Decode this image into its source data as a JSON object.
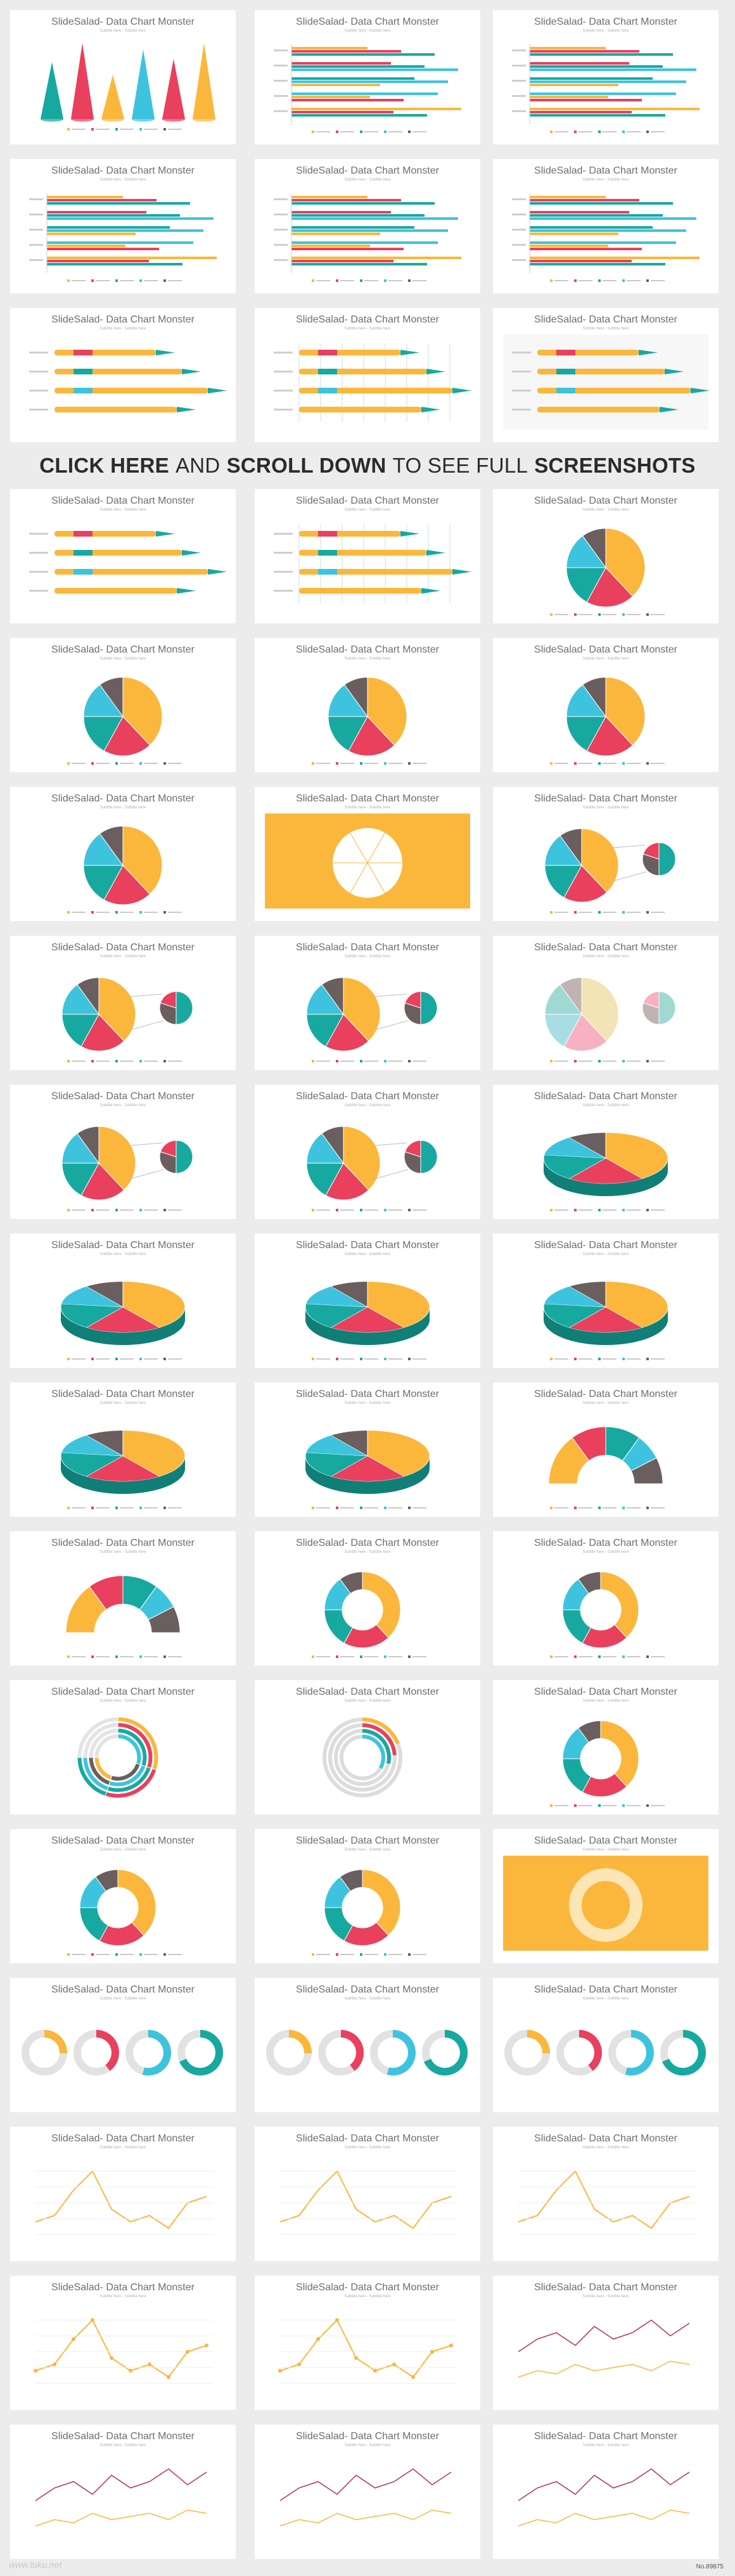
{
  "card_title": "SlideSalad- Data Chart Monster",
  "card_subtitle": "Subtitle here - Subtitle here",
  "banner": {
    "part1": "CLICK HERE",
    "part2": "AND",
    "part3": "SCROLL DOWN",
    "part4": "TO SEE FULL",
    "part5": "SCREENSHOTS"
  },
  "watermark": "www.tuku.net",
  "code": "No.89875",
  "colors": {
    "yellow": "#fbb73c",
    "teal": "#17a9a0",
    "pink": "#e8405d",
    "blue": "#3ec3de",
    "gray": "#6b5e5e",
    "cream": "#f3e4b5"
  },
  "rows": [
    [
      "cones",
      "hbar",
      "hbar"
    ],
    [
      "hbar",
      "hbar",
      "hbar"
    ],
    [
      "pencil",
      "pencilgrid",
      "pencil3d"
    ],
    [
      "pencil",
      "pencilgrid",
      "pie"
    ],
    [
      "pie",
      "pie",
      "pie"
    ],
    [
      "pie",
      "yellowpie",
      "pieofpie"
    ],
    [
      "pieofpie",
      "pieofpie",
      "pieofpie-light"
    ],
    [
      "pieofpie",
      "pieofpie",
      "pie3d"
    ],
    [
      "pie3d",
      "pie3d",
      "pie3d"
    ],
    [
      "pie3d",
      "pie3d",
      "halfdonut"
    ],
    [
      "halfdonut",
      "donut",
      "donut"
    ],
    [
      "radial",
      "radial-gray",
      "donut"
    ],
    [
      "donut",
      "donut",
      "yellowdonut"
    ],
    [
      "rings",
      "rings",
      "rings"
    ],
    [
      "line1",
      "line1",
      "line1"
    ],
    [
      "line2",
      "line2",
      "line3"
    ],
    [
      "line3",
      "line3",
      "line3"
    ]
  ]
}
